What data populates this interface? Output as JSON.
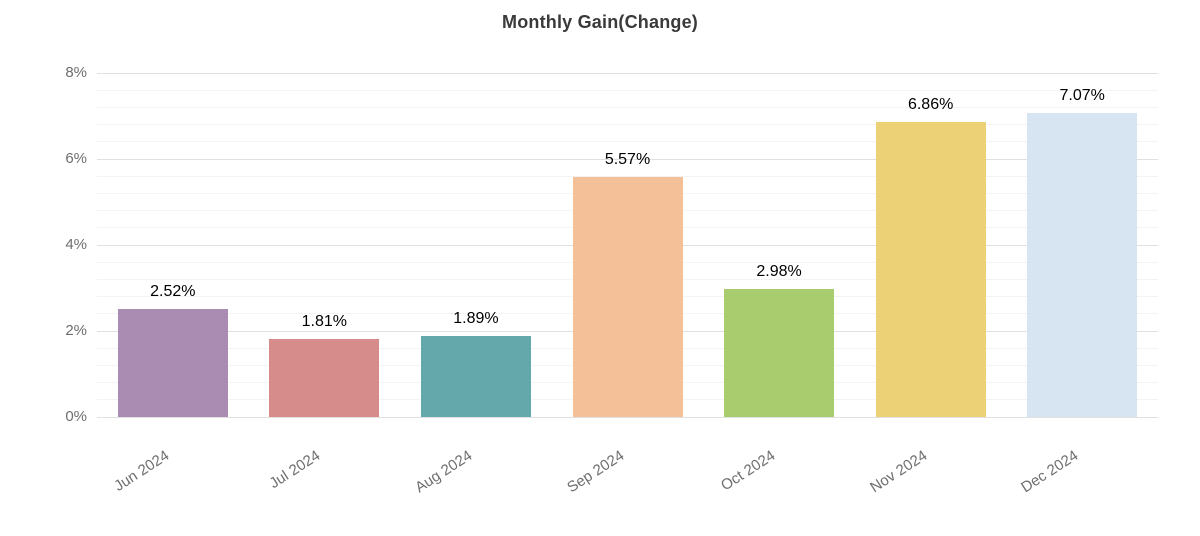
{
  "chart_data": {
    "type": "bar",
    "title": "Monthly Gain(Change)",
    "categories": [
      "Jun 2024",
      "Jul 2024",
      "Aug 2024",
      "Sep 2024",
      "Oct 2024",
      "Nov 2024",
      "Dec 2024"
    ],
    "values": [
      2.52,
      1.81,
      1.89,
      5.57,
      2.98,
      6.86,
      7.07
    ],
    "value_labels": [
      "2.52%",
      "1.81%",
      "1.89%",
      "5.57%",
      "2.98%",
      "6.86%",
      "7.07%"
    ],
    "bar_colors": [
      "#aa8cb3",
      "#d68c8b",
      "#64a8ab",
      "#f4c097",
      "#a9cc6e",
      "#ecd177",
      "#d7e5f2"
    ],
    "xlabel": "",
    "ylabel": "",
    "ylim": [
      0,
      8
    ],
    "y_ticks": [
      {
        "value": 0,
        "label": "0%"
      },
      {
        "value": 2,
        "label": "2%"
      },
      {
        "value": 4,
        "label": "4%"
      },
      {
        "value": 6,
        "label": "6%"
      },
      {
        "value": 8,
        "label": "8%"
      }
    ],
    "major_tick_step": 2,
    "minor_tick_step": 0.4,
    "grid": true,
    "legend": false,
    "x_label_rotation_deg": -33
  },
  "palette": {
    "background": "#ffffff",
    "title_color": "#3a3a3a",
    "axis_label_color": "#6e6e6e",
    "value_label_color": "#000000",
    "grid_major_color": "#e0e0e0",
    "grid_minor_color": "#f3f3f3"
  }
}
